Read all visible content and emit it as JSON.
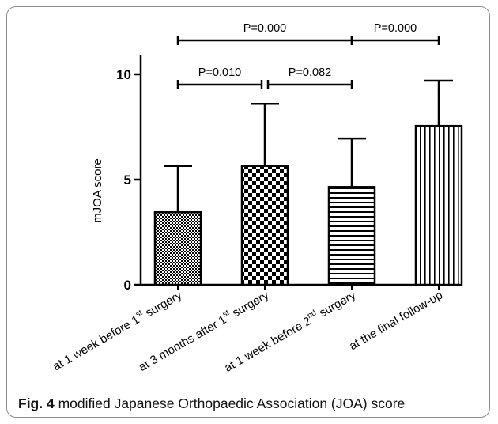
{
  "chart_data": {
    "type": "bar",
    "ylabel": "mJOA score",
    "ylim": [
      0,
      10
    ],
    "yticks": [
      0,
      5,
      10
    ],
    "categories": [
      {
        "pre": "at 1 week before 1",
        "sup": "st",
        "post": " surgery"
      },
      {
        "pre": "at 3 months after 1",
        "sup": "st",
        "post": " surgery"
      },
      {
        "pre": "at 1 week before 2",
        "sup": "nd",
        "post": " surgery"
      },
      {
        "pre": "at the final follow-up",
        "sup": "",
        "post": ""
      }
    ],
    "values": [
      3.45,
      5.65,
      4.65,
      7.55
    ],
    "errors": [
      2.2,
      2.95,
      2.3,
      2.15
    ],
    "patterns": [
      "fine-checker",
      "coarse-checker",
      "horizontal-lines",
      "vertical-lines"
    ],
    "comparisons": [
      {
        "from": 0,
        "to": 1,
        "label": "P=0.010",
        "level": 1
      },
      {
        "from": 1,
        "to": 2,
        "label": "P=0.082",
        "level": 1
      },
      {
        "from": 0,
        "to": 2,
        "label": "P=0.000",
        "level": 2
      },
      {
        "from": 2,
        "to": 3,
        "label": "P=0.000",
        "level": 2
      }
    ]
  },
  "caption": {
    "label": "Fig. 4",
    "text": " modified Japanese Orthopaedic Association (JOA) score"
  }
}
